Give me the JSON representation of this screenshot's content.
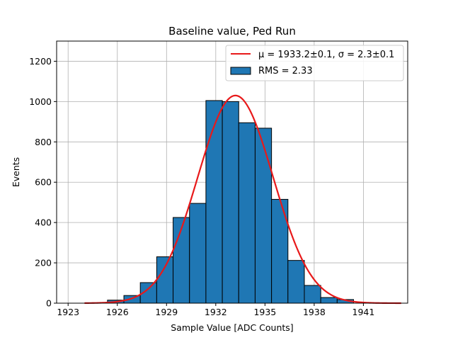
{
  "chart_data": {
    "type": "bar",
    "title": "Baseline value, Ped Run",
    "xlabel": "Sample Value [ADC Counts]",
    "ylabel": "Events",
    "xlim": [
      1922.3,
      1943.7
    ],
    "ylim": [
      0,
      1300
    ],
    "x_ticks": [
      "1923",
      "1926",
      "1929",
      "1932",
      "1935",
      "1938",
      "1941"
    ],
    "x_tick_values": [
      1923,
      1926,
      1929,
      1932,
      1935,
      1938,
      1941
    ],
    "y_ticks": [
      "0",
      "200",
      "400",
      "600",
      "800",
      "1000",
      "1200"
    ],
    "y_tick_values": [
      0,
      200,
      400,
      600,
      800,
      1000,
      1200
    ],
    "grid": true,
    "legend_position": "upper-right",
    "bin_edges": [
      1925.4,
      1926.4,
      1927.4,
      1928.4,
      1929.4,
      1930.4,
      1931.4,
      1932.4,
      1933.4,
      1934.4,
      1935.4,
      1936.4,
      1937.4,
      1938.4,
      1939.4,
      1940.4
    ],
    "counts": [
      15,
      38,
      102,
      230,
      425,
      495,
      1005,
      1000,
      895,
      868,
      515,
      212,
      88,
      28,
      18
    ],
    "bar_color": "#1f77b4",
    "fit": {
      "label": "μ = 1933.2±0.1, σ = 2.3±0.1",
      "mu": 1933.2,
      "sigma": 2.3,
      "amplitude": 1030,
      "x_range": [
        1924,
        1943.3
      ],
      "color": "#e8191a"
    },
    "legend": [
      {
        "label": "μ = 1933.2±0.1, σ = 2.3±0.1",
        "kind": "line",
        "color": "#e8191a"
      },
      {
        "label": "RMS = 2.33",
        "kind": "patch",
        "color": "#1f77b4"
      }
    ]
  }
}
